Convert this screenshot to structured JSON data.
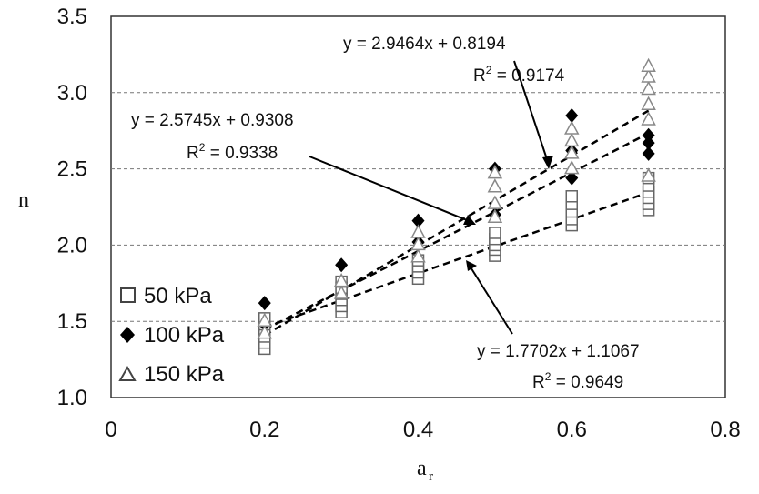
{
  "chart_data": {
    "type": "scatter",
    "xlabel": "a",
    "xlabel_sub": "r",
    "ylabel": "n",
    "xlim": [
      0,
      0.8
    ],
    "ylim": [
      1.0,
      3.5
    ],
    "x_ticks": [
      "0",
      "0.2",
      "0.4",
      "0.6",
      "0.8"
    ],
    "y_ticks": [
      "1.0",
      "1.5",
      "2.0",
      "2.5",
      "3.0",
      "3.5"
    ],
    "grid": "horizontal dashed",
    "legend_position": "bottom-left",
    "series": [
      {
        "name": "50 kPa",
        "marker": "open-square",
        "color": "#666666",
        "points": [
          [
            0.2,
            1.32
          ],
          [
            0.2,
            1.36
          ],
          [
            0.2,
            1.4
          ],
          [
            0.2,
            1.44
          ],
          [
            0.2,
            1.48
          ],
          [
            0.2,
            1.52
          ],
          [
            0.3,
            1.56
          ],
          [
            0.3,
            1.6
          ],
          [
            0.3,
            1.64
          ],
          [
            0.3,
            1.68
          ],
          [
            0.3,
            1.72
          ],
          [
            0.3,
            1.76
          ],
          [
            0.4,
            1.78
          ],
          [
            0.4,
            1.82
          ],
          [
            0.4,
            1.86
          ],
          [
            0.4,
            1.9
          ],
          [
            0.5,
            1.93
          ],
          [
            0.5,
            1.97
          ],
          [
            0.5,
            2.0
          ],
          [
            0.5,
            2.04
          ],
          [
            0.5,
            2.08
          ],
          [
            0.6,
            2.13
          ],
          [
            0.6,
            2.17
          ],
          [
            0.6,
            2.22
          ],
          [
            0.6,
            2.27
          ],
          [
            0.6,
            2.32
          ],
          [
            0.7,
            2.23
          ],
          [
            0.7,
            2.27
          ],
          [
            0.7,
            2.31
          ],
          [
            0.7,
            2.35
          ],
          [
            0.7,
            2.39
          ],
          [
            0.7,
            2.44
          ]
        ]
      },
      {
        "name": "100 kPa",
        "marker": "filled-diamond",
        "color": "#000000",
        "points": [
          [
            0.2,
            1.62
          ],
          [
            0.2,
            1.48
          ],
          [
            0.3,
            1.87
          ],
          [
            0.4,
            2.16
          ],
          [
            0.4,
            2.02
          ],
          [
            0.5,
            2.5
          ],
          [
            0.5,
            2.2
          ],
          [
            0.6,
            2.85
          ],
          [
            0.6,
            2.62
          ],
          [
            0.6,
            2.44
          ],
          [
            0.7,
            2.6
          ],
          [
            0.7,
            2.67
          ],
          [
            0.7,
            2.72
          ]
        ]
      },
      {
        "name": "150 kPa",
        "marker": "open-triangle",
        "color": "#888888",
        "points": [
          [
            0.2,
            1.42
          ],
          [
            0.2,
            1.5
          ],
          [
            0.3,
            1.68
          ],
          [
            0.3,
            1.76
          ],
          [
            0.4,
            1.92
          ],
          [
            0.4,
            2.0
          ],
          [
            0.4,
            2.08
          ],
          [
            0.5,
            2.18
          ],
          [
            0.5,
            2.27
          ],
          [
            0.5,
            2.38
          ],
          [
            0.5,
            2.47
          ],
          [
            0.6,
            2.5
          ],
          [
            0.6,
            2.6
          ],
          [
            0.6,
            2.68
          ],
          [
            0.6,
            2.76
          ],
          [
            0.7,
            2.45
          ],
          [
            0.7,
            2.82
          ],
          [
            0.7,
            2.92
          ],
          [
            0.7,
            3.02
          ],
          [
            0.7,
            3.1
          ],
          [
            0.7,
            3.17
          ]
        ]
      }
    ],
    "trendlines": [
      {
        "slope": 1.7702,
        "intercept": 1.1067,
        "x_range": [
          0.2,
          0.7
        ]
      },
      {
        "slope": 2.5745,
        "intercept": 0.9308,
        "x_range": [
          0.2,
          0.7
        ]
      },
      {
        "slope": 2.9464,
        "intercept": 0.8194,
        "x_range": [
          0.2,
          0.7
        ]
      }
    ],
    "annotations": [
      {
        "equation": "y = 2.9464x + 0.8194",
        "r2_label": "R",
        "r2_sup": "2",
        "r2_value": " = 0.9174"
      },
      {
        "equation": "y = 2.5745x + 0.9308",
        "r2_label": "R",
        "r2_sup": "2",
        "r2_value": " = 0.9338"
      },
      {
        "equation": "y = 1.7702x + 1.1067",
        "r2_label": "R",
        "r2_sup": "2",
        "r2_value": " = 0.9649"
      }
    ]
  }
}
